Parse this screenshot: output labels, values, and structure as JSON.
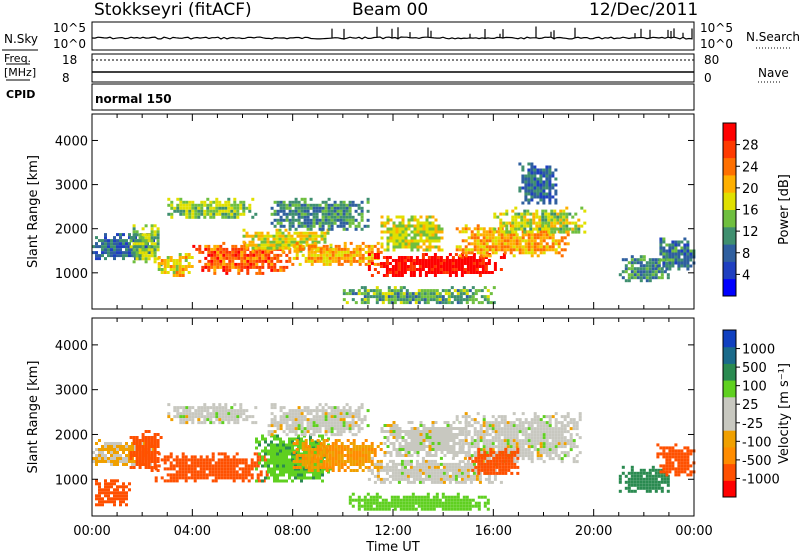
{
  "header": {
    "station": "Stokkseyri (fitACF)",
    "beam": "Beam 00",
    "date": "12/Dec/2011"
  },
  "status_panels": {
    "nsky_label": "N.Sky",
    "nsky_ticks": [
      "10^5",
      "10^0"
    ],
    "nsearch_label": "N.Search",
    "nsearch_ticks": [
      "10^5",
      "10^0"
    ],
    "freq_label": "Freq.",
    "freq_unit": "[MHz]",
    "freq_ticks": [
      "18",
      "8"
    ],
    "nave_label": "Nave",
    "nave_ticks": [
      "80",
      "0"
    ],
    "cpid_label": "CPID",
    "cpid_value": "normal 150"
  },
  "colors": {
    "power": [
      "#0000ff",
      "#1f3fc0",
      "#2f5f9f",
      "#3f8f6f",
      "#6fbf3f",
      "#e0e000",
      "#ffb000",
      "#ff7000",
      "#ff3a00",
      "#ff0000"
    ],
    "velocity": [
      "#ff0000",
      "#ff5000",
      "#ff8c00",
      "#f0a000",
      "#c8c8c0",
      "#c8c8c0",
      "#5fd020",
      "#2a8a50",
      "#1a6a8a",
      "#1040c0"
    ]
  },
  "chart_data": [
    {
      "type": "heatmap",
      "panel": "power",
      "ylabel": "Slant Range [km]",
      "xlim": [
        "00:00",
        "24:00"
      ],
      "ylim": [
        180,
        4600
      ],
      "yticks": [
        1000,
        2000,
        3000,
        4000
      ],
      "xticks": [
        "00:00",
        "04:00",
        "08:00",
        "12:00",
        "16:00",
        "20:00",
        "00:00"
      ],
      "xlabel": "Time UT",
      "colorbar": {
        "label": "Power [dB]",
        "ticks": [
          "28",
          "24",
          "20",
          "16",
          "12",
          "8",
          "4"
        ],
        "range": [
          0,
          30
        ]
      },
      "blobs": [
        {
          "t0": 0.0,
          "t1": 2.5,
          "r0": 1300,
          "r1": 1900,
          "value": 8
        },
        {
          "t0": 1.5,
          "t1": 2.7,
          "r0": 1200,
          "r1": 2100,
          "value": 14
        },
        {
          "t0": 2.5,
          "t1": 4.0,
          "r0": 950,
          "r1": 1450,
          "value": 18
        },
        {
          "t0": 3.0,
          "t1": 6.5,
          "r0": 2250,
          "r1": 2700,
          "value": 14
        },
        {
          "t0": 4.0,
          "t1": 8.0,
          "r0": 1000,
          "r1": 1700,
          "value": 24
        },
        {
          "t0": 6.0,
          "t1": 9.5,
          "r0": 1500,
          "r1": 2000,
          "value": 17
        },
        {
          "t0": 8.0,
          "t1": 11.5,
          "r0": 1200,
          "r1": 1700,
          "value": 20
        },
        {
          "t0": 7.0,
          "t1": 11.0,
          "r0": 2000,
          "r1": 2700,
          "value": 10
        },
        {
          "t0": 11.0,
          "t1": 16.5,
          "r0": 950,
          "r1": 1450,
          "value": 29
        },
        {
          "t0": 11.5,
          "t1": 14.0,
          "r0": 1500,
          "r1": 2300,
          "value": 16
        },
        {
          "t0": 14.5,
          "t1": 19.0,
          "r0": 1400,
          "r1": 2100,
          "value": 20
        },
        {
          "t0": 16.0,
          "t1": 19.6,
          "r0": 1900,
          "r1": 2500,
          "value": 15
        },
        {
          "t0": 17.0,
          "t1": 18.5,
          "r0": 2600,
          "r1": 3500,
          "value": 8
        },
        {
          "t0": 21.0,
          "t1": 23.0,
          "r0": 800,
          "r1": 1400,
          "value": 10
        },
        {
          "t0": 22.5,
          "t1": 24.0,
          "r0": 1100,
          "r1": 1800,
          "value": 9
        },
        {
          "t0": 10.0,
          "t1": 16.0,
          "r0": 300,
          "r1": 700,
          "value": 12
        }
      ]
    },
    {
      "type": "heatmap",
      "panel": "velocity",
      "ylabel": "Slant Range [km]",
      "xlim": [
        "00:00",
        "24:00"
      ],
      "ylim": [
        180,
        4600
      ],
      "yticks": [
        1000,
        2000,
        3000,
        4000
      ],
      "xticks": [
        "00:00",
        "04:00",
        "08:00",
        "12:00",
        "16:00",
        "20:00",
        "00:00"
      ],
      "xlabel": "Time UT",
      "colorbar": {
        "label": "Velocity [m s⁻¹]",
        "ticks": [
          "1000",
          "500",
          "100",
          "25",
          "-25",
          "-100",
          "-500",
          "-1000"
        ],
        "range": [
          -1000,
          1000
        ]
      },
      "blobs": [
        {
          "t0": 0.0,
          "t1": 1.5,
          "r0": 400,
          "r1": 1000,
          "value": -180
        },
        {
          "t0": 0.0,
          "t1": 2.5,
          "r0": 1300,
          "r1": 1900,
          "value": -30
        },
        {
          "t0": 1.5,
          "t1": 2.7,
          "r0": 1200,
          "r1": 2100,
          "value": -220
        },
        {
          "t0": 2.5,
          "t1": 7.0,
          "r0": 950,
          "r1": 1600,
          "value": -250
        },
        {
          "t0": 3.0,
          "t1": 6.5,
          "r0": 2250,
          "r1": 2700,
          "value": 0
        },
        {
          "t0": 6.5,
          "t1": 9.5,
          "r0": 950,
          "r1": 2000,
          "value": 80
        },
        {
          "t0": 8.0,
          "t1": 11.5,
          "r0": 1200,
          "r1": 1900,
          "value": -60
        },
        {
          "t0": 7.0,
          "t1": 11.0,
          "r0": 2000,
          "r1": 2700,
          "value": 0
        },
        {
          "t0": 11.0,
          "t1": 16.5,
          "r0": 900,
          "r1": 1500,
          "value": 0
        },
        {
          "t0": 11.5,
          "t1": 15.0,
          "r0": 1500,
          "r1": 2300,
          "value": 0
        },
        {
          "t0": 14.5,
          "t1": 19.5,
          "r0": 1400,
          "r1": 2500,
          "value": 0
        },
        {
          "t0": 15.0,
          "t1": 17.0,
          "r0": 1100,
          "r1": 1700,
          "value": -150
        },
        {
          "t0": 21.0,
          "t1": 23.0,
          "r0": 700,
          "r1": 1300,
          "value": 300
        },
        {
          "t0": 22.5,
          "t1": 24.0,
          "r0": 1100,
          "r1": 1800,
          "value": -350
        },
        {
          "t0": 10.0,
          "t1": 16.0,
          "r0": 300,
          "r1": 700,
          "value": 60
        }
      ]
    }
  ]
}
